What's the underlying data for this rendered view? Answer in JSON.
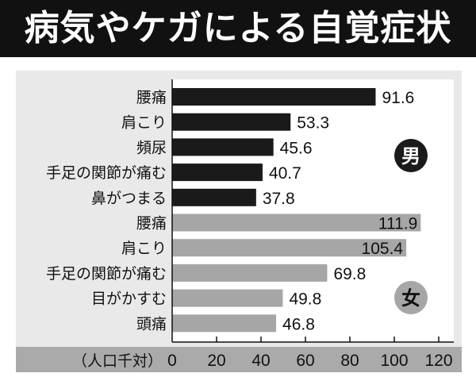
{
  "chart_data": {
    "type": "bar",
    "orientation": "horizontal",
    "title": "病気やケガによる自覚症状",
    "xlabel": "（人口千対）",
    "xlim": [
      0,
      120
    ],
    "xticks": [
      0,
      20,
      40,
      60,
      80,
      100,
      120
    ],
    "groups": [
      {
        "name": "男",
        "color": "#1a1a1a",
        "categories": [
          "腰痛",
          "肩こり",
          "頻尿",
          "手足の関節が痛む",
          "鼻がつまる"
        ],
        "values": [
          91.6,
          53.3,
          45.6,
          40.7,
          37.8
        ]
      },
      {
        "name": "女",
        "color": "#a6a6a6",
        "categories": [
          "腰痛",
          "肩こり",
          "手足の関節が痛む",
          "目がかすむ",
          "頭痛"
        ],
        "values": [
          111.9,
          105.4,
          69.8,
          49.8,
          46.8
        ]
      }
    ]
  }
}
